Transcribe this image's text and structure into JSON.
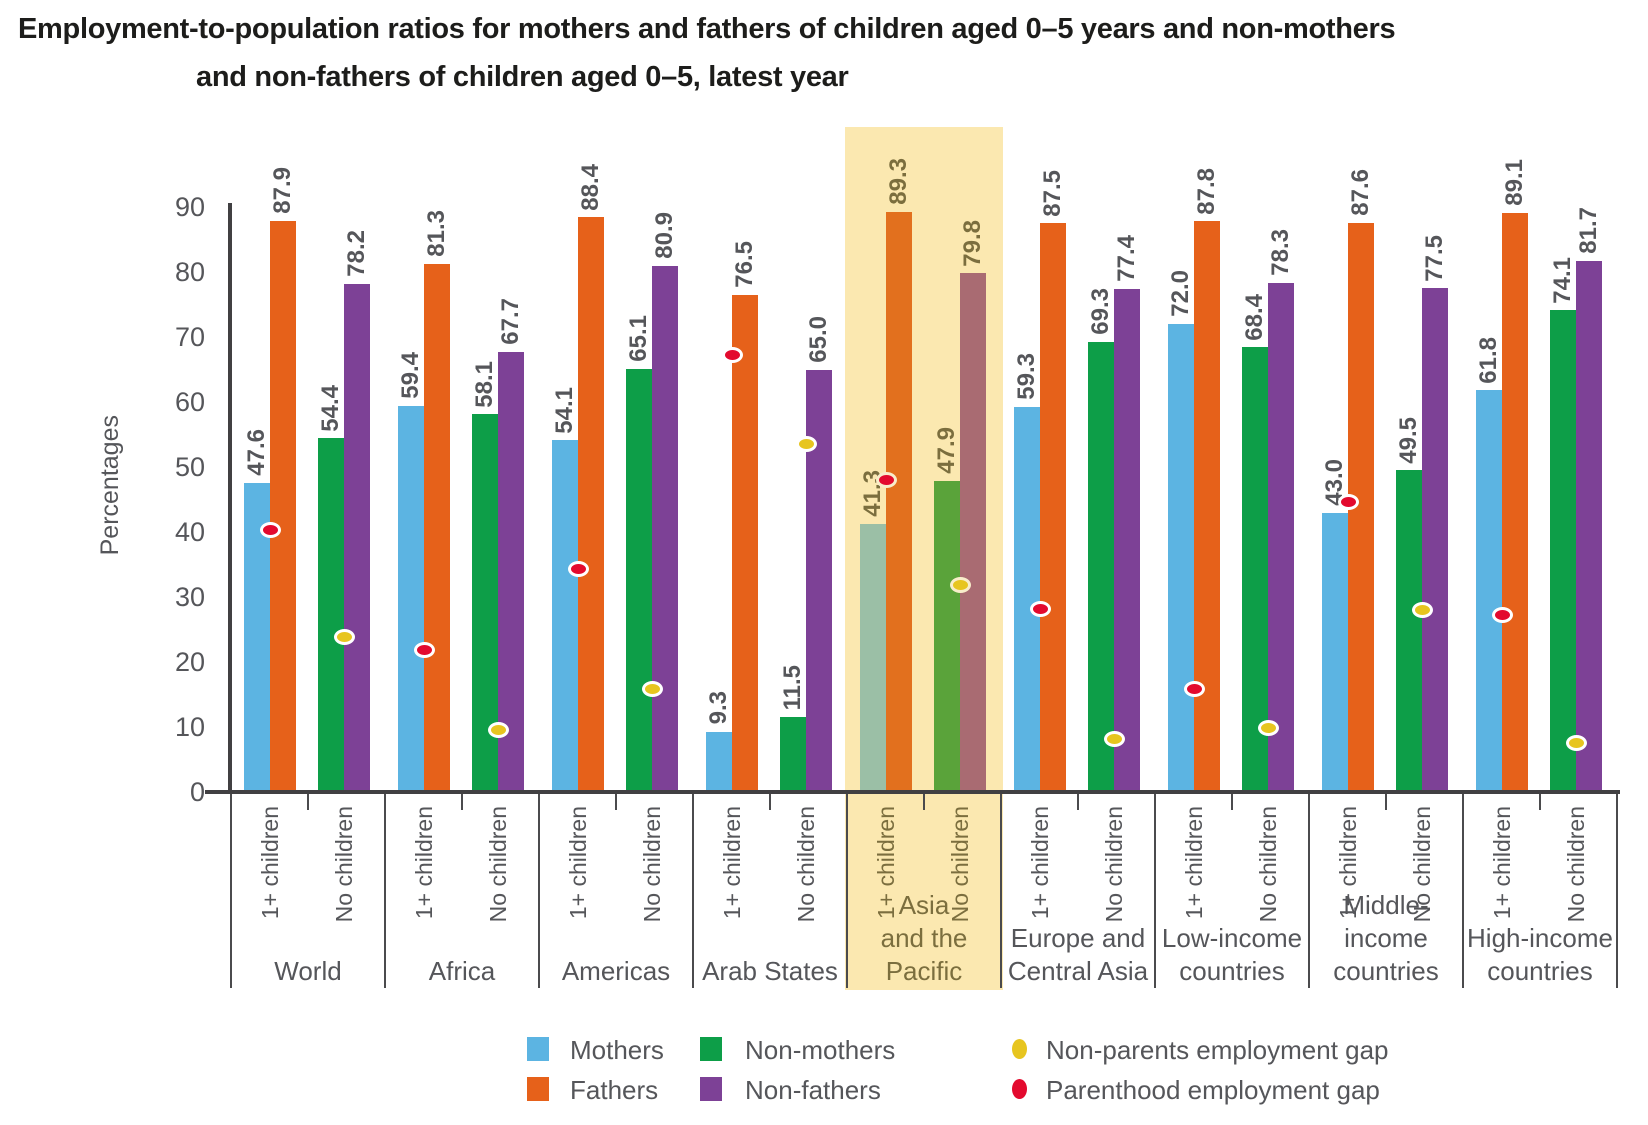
{
  "title": {
    "full": "Employment-to-population ratios for mothers and fathers of children aged 0–5 years and non-mothers and non-fathers of children aged 0–5, latest year",
    "line1": "Employment-to-population ratios for mothers and fathers of children aged 0–5 years and non-mothers",
    "line2": "and non-fathers of children aged 0–5, latest year"
  },
  "y_axis": {
    "label": "Percentages",
    "ticks": [
      0,
      10,
      20,
      30,
      40,
      50,
      60,
      70,
      80,
      90
    ]
  },
  "pair_labels": {
    "parents": "1+ children",
    "no_children": "No children"
  },
  "legend": {
    "items": [
      {
        "id": "mothers",
        "marker": "square",
        "label": "Mothers"
      },
      {
        "id": "fathers",
        "marker": "square",
        "label": "Fathers"
      },
      {
        "id": "non_mothers",
        "marker": "square",
        "label": "Non-mothers"
      },
      {
        "id": "non_fathers",
        "marker": "square",
        "label": "Non-fathers"
      },
      {
        "id": "non_parents_gap",
        "marker": "circle",
        "label": "Non-parents employment gap"
      },
      {
        "id": "parenthood_gap",
        "marker": "circle",
        "label": "Parenthood employment gap"
      }
    ]
  },
  "colors": {
    "mothers": "#5cb4e2",
    "fathers": "#e6611a",
    "non_mothers": "#0d9e48",
    "non_fathers": "#7d4196",
    "non_parents_gap": "#e7c51f",
    "parenthood_gap": "#e30a2e",
    "mothers_muted": "#9bbfa6",
    "fathers_muted": "#e2701e",
    "non_mothers_muted": "#5aa33a",
    "non_fathers_muted": "#a96b72",
    "highlight_band": "#fbe8b0",
    "band_text": "#7b6e3e",
    "band_dot_ring": "#f8edca",
    "text_gray": "#55565a",
    "axis": "#414042",
    "axis_light": "#4b4b4d"
  },
  "chart_data": {
    "type": "bar",
    "title": "Employment-to-population ratios for mothers and fathers of children aged 0–5 years and non-mothers and non-fathers of children aged 0–5, latest year",
    "xlabel": "",
    "ylabel": "Percentages",
    "ylim": [
      0,
      90
    ],
    "yticks": [
      0,
      10,
      20,
      30,
      40,
      50,
      60,
      70,
      80,
      90
    ],
    "grid": false,
    "legend_position": "bottom",
    "highlighted_region": "Asia and the Pacific",
    "series_names": [
      "Mothers",
      "Fathers",
      "Non-mothers",
      "Non-fathers"
    ],
    "dot_series_names": [
      "Parenthood employment gap",
      "Non-parents employment gap"
    ],
    "pair_labels": [
      "1+ children",
      "No children"
    ],
    "groups": [
      {
        "region": "World",
        "region_lines": "World",
        "highlighted": false,
        "mothers": 47.6,
        "fathers": 87.9,
        "non_mothers": 54.4,
        "non_fathers": 78.2,
        "parenthood_gap": 40.3,
        "non_parents_gap": 23.8
      },
      {
        "region": "Africa",
        "region_lines": "Africa",
        "highlighted": false,
        "mothers": 59.4,
        "fathers": 81.3,
        "non_mothers": 58.1,
        "non_fathers": 67.7,
        "parenthood_gap": 21.9,
        "non_parents_gap": 9.6
      },
      {
        "region": "Americas",
        "region_lines": "Americas",
        "highlighted": false,
        "mothers": 54.1,
        "fathers": 88.4,
        "non_mothers": 65.1,
        "non_fathers": 80.9,
        "parenthood_gap": 34.3,
        "non_parents_gap": 15.8
      },
      {
        "region": "Arab States",
        "region_lines": "Arab States",
        "highlighted": false,
        "mothers": 9.3,
        "fathers": 76.5,
        "non_mothers": 11.5,
        "non_fathers": 65.0,
        "parenthood_gap": 67.2,
        "non_parents_gap": 53.5
      },
      {
        "region": "Asia and the Pacific",
        "region_lines": "Asia\nand the Pacific",
        "highlighted": true,
        "mothers": 41.3,
        "fathers": 89.3,
        "non_mothers": 47.9,
        "non_fathers": 79.8,
        "parenthood_gap": 48.0,
        "non_parents_gap": 31.9
      },
      {
        "region": "Europe and Central Asia",
        "region_lines": "Europe and\nCentral Asia",
        "highlighted": false,
        "mothers": 59.3,
        "fathers": 87.5,
        "non_mothers": 69.3,
        "non_fathers": 77.4,
        "parenthood_gap": 28.2,
        "non_parents_gap": 8.1
      },
      {
        "region": "Low-income countries",
        "region_lines": "Low-income\ncountries",
        "highlighted": false,
        "mothers": 72.0,
        "fathers": 87.8,
        "non_mothers": 68.4,
        "non_fathers": 78.3,
        "parenthood_gap": 15.8,
        "non_parents_gap": 9.9
      },
      {
        "region": "Middle-income countries",
        "region_lines": "Middle-income\ncountries",
        "highlighted": false,
        "mothers": 43.0,
        "fathers": 87.6,
        "non_mothers": 49.5,
        "non_fathers": 77.5,
        "parenthood_gap": 44.6,
        "non_parents_gap": 28.0
      },
      {
        "region": "High-income countries",
        "region_lines": "High-income\ncountries",
        "highlighted": false,
        "mothers": 61.8,
        "fathers": 89.1,
        "non_mothers": 74.1,
        "non_fathers": 81.7,
        "parenthood_gap": 27.3,
        "non_parents_gap": 7.6
      }
    ]
  }
}
